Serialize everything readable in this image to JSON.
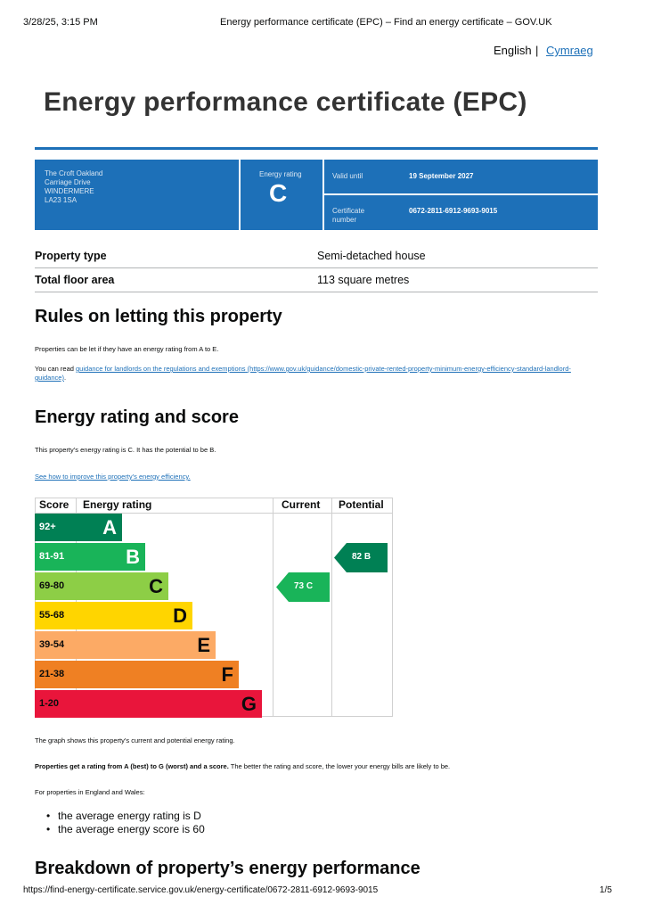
{
  "print_header": {
    "datetime": "3/28/25, 3:15 PM",
    "title": "Energy performance certificate (EPC) – Find an energy certificate – GOV.UK"
  },
  "language": {
    "english": "English",
    "separator": "|",
    "welsh": "Cymraeg"
  },
  "page_title": "Energy performance certificate (EPC)",
  "summary": {
    "address_lines": [
      "The Croft Oakland",
      "Carriage Drive",
      "WINDERMERE",
      "LA23 1SA"
    ],
    "rating_label": "Energy rating",
    "rating_value": "C",
    "valid_until_label": "Valid until",
    "valid_until_value": "19 September 2027",
    "certificate_label": "Certificate number",
    "certificate_value": "0672-2811-6912-9693-9015"
  },
  "property": {
    "type_label": "Property type",
    "type_value": "Semi-detached house",
    "area_label": "Total floor area",
    "area_value": "113 square metres"
  },
  "letting": {
    "heading": "Rules on letting this property",
    "para1": "Properties can be let if they have an energy rating from A to E.",
    "para2_prefix": "You can read ",
    "link_text": "guidance for landlords on the regulations and exemptions",
    "link_url": "(https://www.gov.uk/guidance/domestic-private-rented-property-minimum-energy-efficiency-standard-landlord-guidance)",
    "para2_suffix": "."
  },
  "rating_section": {
    "heading": "Energy rating and score",
    "intro": "This property’s energy rating is C. It has the potential to be B.",
    "improve_link": "See how to improve this property’s energy efficiency."
  },
  "chart_data": {
    "type": "bar",
    "headers": {
      "score": "Score",
      "rating": "Energy rating",
      "current": "Current",
      "potential": "Potential"
    },
    "bands": [
      {
        "score": "92+",
        "letter": "A",
        "color": "#008054",
        "text_color": "#ffffff"
      },
      {
        "score": "81-91",
        "letter": "B",
        "color": "#19b459",
        "text_color": "#ffffff"
      },
      {
        "score": "69-80",
        "letter": "C",
        "color": "#8dce46",
        "text_color": "#0b0c0c"
      },
      {
        "score": "55-68",
        "letter": "D",
        "color": "#ffd500",
        "text_color": "#0b0c0c"
      },
      {
        "score": "39-54",
        "letter": "E",
        "color": "#fcaa65",
        "text_color": "#0b0c0c"
      },
      {
        "score": "21-38",
        "letter": "F",
        "color": "#ef8023",
        "text_color": "#0b0c0c"
      },
      {
        "score": "1-20",
        "letter": "G",
        "color": "#e9153b",
        "text_color": "#0b0c0c"
      }
    ],
    "current": {
      "score": 73,
      "letter": "C",
      "label": "73 C",
      "color": "#19b459"
    },
    "potential": {
      "score": 82,
      "letter": "B",
      "label": "82 B",
      "color": "#008054"
    }
  },
  "after_chart": {
    "caption": "The graph shows this property’s current and potential energy rating.",
    "bold_text": "Properties get a rating from A (best) to G (worst) and a score.",
    "rest_text": " The better the rating and score, the lower your energy bills are likely to be.",
    "england_wales": "For properties in England and Wales:",
    "bullets": [
      "the average energy rating is D",
      "the average energy score is 60"
    ]
  },
  "breakdown_heading": "Breakdown of property’s energy performance",
  "footer": {
    "url": "https://find-energy-certificate.service.gov.uk/energy-certificate/0672-2811-6912-9693-9015",
    "page": "1/5"
  }
}
